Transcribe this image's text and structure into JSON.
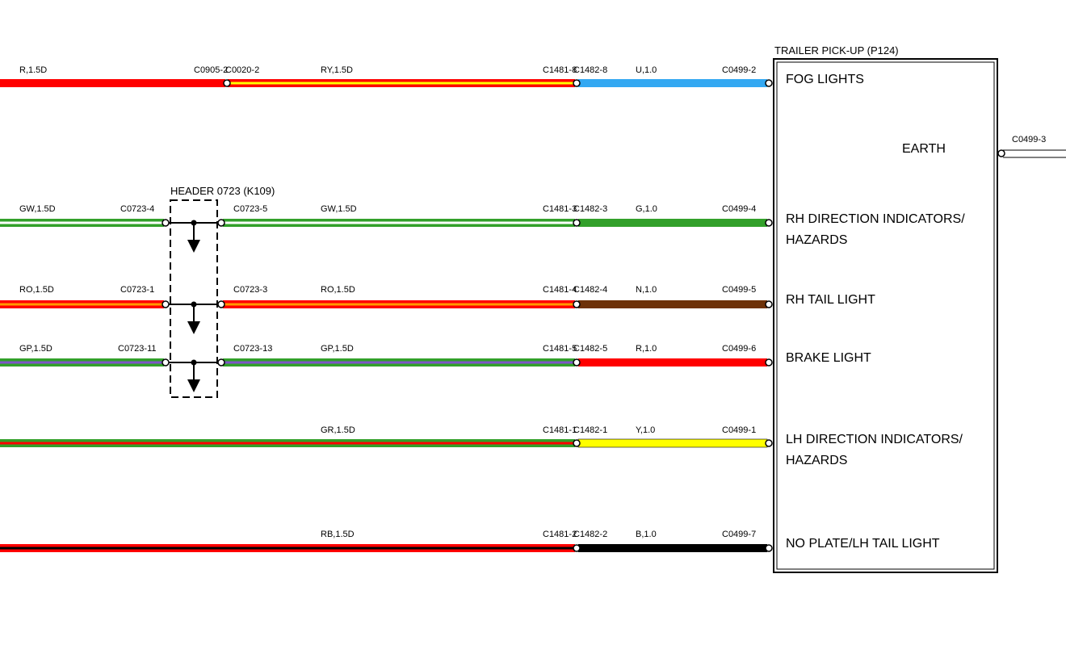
{
  "colors": {
    "red": "#ff0000",
    "yellow": "#ffff00",
    "blue": "#33a8f2",
    "green": "#32a02a",
    "white": "#ffffff",
    "brown": "#6e3209",
    "black": "#000000",
    "purple": "#7f55c8",
    "dark_red": "#8b1a1a"
  },
  "header": {
    "label": "HEADER 0723 (K109)"
  },
  "trailer": {
    "title": "TRAILER PICK-UP (P124)",
    "pins": {
      "fog": "FOG LIGHTS",
      "earth": "EARTH",
      "rh_dir_1": "RH DIRECTION INDICATORS/",
      "rh_dir_2": "HAZARDS",
      "rh_tail": "RH TAIL LIGHT",
      "brake": "BRAKE LIGHT",
      "lh_dir_1": "LH DIRECTION INDICATORS/",
      "lh_dir_2": "HAZARDS",
      "no_plate": "NO PLATE/LH TAIL LIGHT"
    },
    "earth_connector": "C0499-3"
  },
  "circuits": {
    "fog": {
      "w1": "R,1.5D",
      "c1": "C0905-2",
      "c2": "C0020-2",
      "w2": "RY,1.5D",
      "c3": "C1481-8",
      "c4": "C1482-8",
      "w3": "U,1.0",
      "c5": "C0499-2"
    },
    "rh_dir": {
      "w1": "GW,1.5D",
      "c1": "C0723-4",
      "c2": "C0723-5",
      "w2": "GW,1.5D",
      "c3": "C1481-3",
      "c4": "C1482-3",
      "w3": "G,1.0",
      "c5": "C0499-4"
    },
    "rh_tail": {
      "w1": "RO,1.5D",
      "c1": "C0723-1",
      "c2": "C0723-3",
      "w2": "RO,1.5D",
      "c3": "C1481-4",
      "c4": "C1482-4",
      "w3": "N,1.0",
      "c5": "C0499-5"
    },
    "brake": {
      "w1": "GP,1.5D",
      "c1": "C0723-11",
      "c2": "C0723-13",
      "w2": "GP,1.5D",
      "c3": "C1481-5",
      "c4": "C1482-5",
      "w3": "R,1.0",
      "c5": "C0499-6"
    },
    "lh_dir": {
      "w2": "GR,1.5D",
      "c3": "C1481-1",
      "c4": "C1482-1",
      "w3": "Y,1.0",
      "c5": "C0499-1"
    },
    "no_plate": {
      "w2": "RB,1.5D",
      "c3": "C1481-2",
      "c4": "C1482-2",
      "w3": "B,1.0",
      "c5": "C0499-7"
    }
  }
}
